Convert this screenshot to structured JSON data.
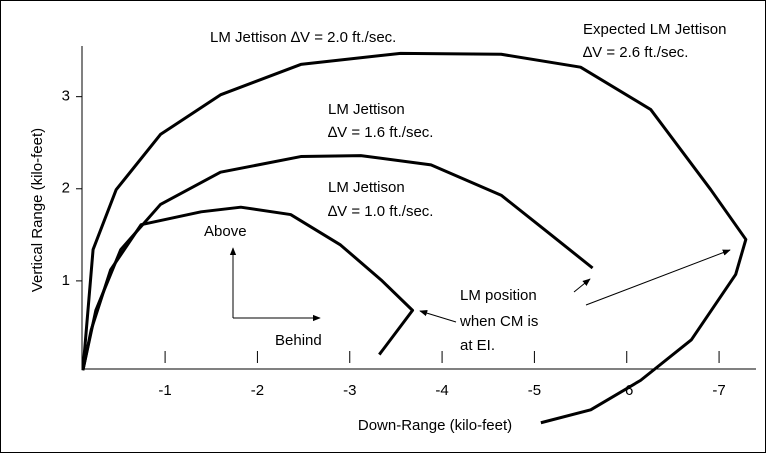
{
  "chart_data": {
    "type": "line",
    "x_label": "Down-Range (kilo-feet)",
    "y_label": "Vertical Range (kilo-feet)",
    "xlim": [
      -0.1,
      -7.4
    ],
    "ylim": [
      0,
      3.55
    ],
    "xticks": [
      -1,
      -2,
      -3,
      -4,
      -5,
      -6,
      -7
    ],
    "yticks": [
      1,
      2,
      3
    ],
    "series": [
      {
        "color": "#000000",
        "x": [
          -0.11,
          -0.2,
          -0.41,
          -0.74,
          -1.39,
          -1.82,
          -2.36,
          -2.9,
          -3.34,
          -3.68,
          -3.32
        ],
        "values": [
          0.03,
          0.47,
          1.12,
          1.61,
          1.75,
          1.8,
          1.72,
          1.39,
          1.01,
          0.68,
          0.2
        ]
      },
      {
        "color": "#000000",
        "x": [
          -0.11,
          -0.25,
          -0.52,
          -0.95,
          -1.6,
          -2.47,
          -3.12,
          -3.88,
          -4.64,
          -5.18,
          -5.63
        ],
        "values": [
          0.03,
          0.68,
          1.34,
          1.83,
          2.18,
          2.35,
          2.36,
          2.26,
          1.93,
          1.5,
          1.14
        ]
      },
      {
        "color": "#000000",
        "x": [
          -0.11,
          -0.22,
          -0.47,
          -0.95,
          -1.6,
          -2.47,
          -3.55,
          -4.64,
          -5.5,
          -6.26,
          -6.91,
          -7.29,
          -7.18,
          -6.7,
          -6.15,
          -5.61,
          -5.07
        ],
        "values": [
          0.03,
          1.34,
          1.99,
          2.59,
          3.02,
          3.35,
          3.47,
          3.46,
          3.32,
          2.86,
          1.99,
          1.45,
          1.07,
          0.36,
          -0.08,
          -0.4,
          -0.54
        ]
      }
    ],
    "annotations": [
      {
        "lines": [
          "LM Jettison ∆V = 2.0 ft./sec."
        ]
      },
      {
        "lines": [
          "Expected LM Jettison",
          "∆V = 2.6 ft./sec."
        ]
      },
      {
        "lines": [
          "LM Jettison",
          "∆V = 1.6 ft./sec."
        ]
      },
      {
        "lines": [
          "LM Jettison",
          "∆V = 1.0 ft./sec."
        ]
      },
      {
        "lines": [
          "Above"
        ]
      },
      {
        "lines": [
          "Behind"
        ]
      },
      {
        "lines": [
          "LM position",
          "when CM is",
          "at EI."
        ]
      }
    ]
  }
}
